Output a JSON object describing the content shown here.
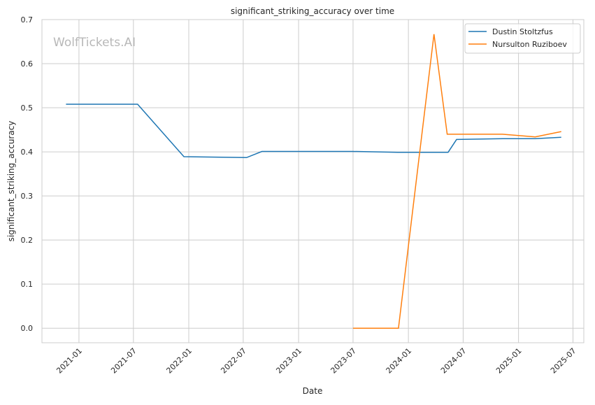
{
  "chart_data": {
    "type": "line",
    "title": "significant_striking_accuracy over time",
    "xlabel": "Date",
    "ylabel": "significant_striking_accuracy",
    "watermark": "WolfTickets.AI",
    "xlim": [
      "2020-08-31",
      "2025-08-06"
    ],
    "ylim": [
      -0.033,
      0.7
    ],
    "grid": true,
    "legend_position": "top-right",
    "x_ticks": [
      "2021-01",
      "2021-07",
      "2022-01",
      "2022-07",
      "2023-01",
      "2023-07",
      "2024-01",
      "2024-07",
      "2025-01",
      "2025-07"
    ],
    "y_ticks": [
      0.0,
      0.1,
      0.2,
      0.3,
      0.4,
      0.5,
      0.6,
      0.7
    ],
    "y_tick_labels": [
      "0.0",
      "0.1",
      "0.2",
      "0.3",
      "0.4",
      "0.5",
      "0.6",
      "0.7"
    ],
    "series": [
      {
        "name": "Dustin Stoltzfus",
        "color": "#1f77b4",
        "x": [
          "2020-11-19",
          "2021-07-15",
          "2021-12-16",
          "2022-07-12",
          "2022-09-01",
          "2023-07-01",
          "2023-11-27",
          "2024-05-12",
          "2024-06-09",
          "2024-11-10",
          "2025-02-25",
          "2025-05-23"
        ],
        "y": [
          0.508,
          0.508,
          0.389,
          0.387,
          0.401,
          0.401,
          0.399,
          0.399,
          0.428,
          0.43,
          0.43,
          0.433
        ]
      },
      {
        "name": "Nursulton Ruziboev",
        "color": "#ff7f0e",
        "x": [
          "2023-07-01",
          "2023-11-29",
          "2024-03-26",
          "2024-05-09",
          "2024-11-08",
          "2025-02-25",
          "2025-05-23"
        ],
        "y": [
          0.0,
          0.0,
          0.667,
          0.44,
          0.44,
          0.434,
          0.446
        ]
      }
    ]
  }
}
